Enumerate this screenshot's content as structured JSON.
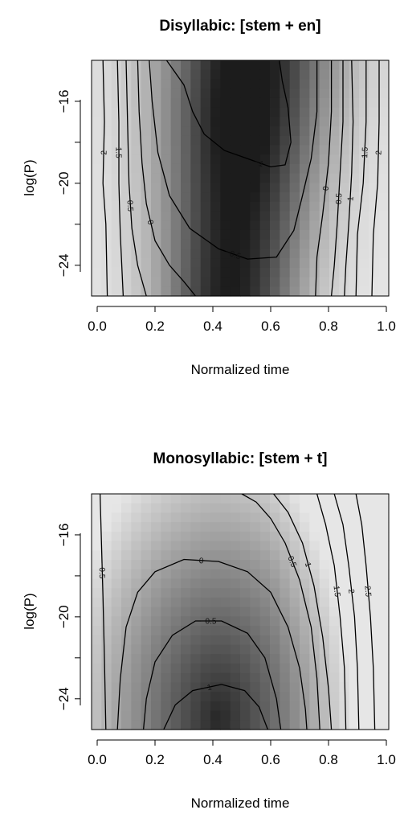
{
  "chart_data": [
    {
      "type": "heatmap",
      "title": "Disyllabic: [stem + en]",
      "xlabel": "Normalized time",
      "ylabel": "log(P)",
      "xlim": [
        0.0,
        1.0
      ],
      "ylim": [
        -25.5,
        -14
      ],
      "x_ticks": [
        "0.0",
        "0.2",
        "0.4",
        "0.6",
        "0.8",
        "1.0"
      ],
      "y_ticks": [
        "-16",
        "-20",
        "-24"
      ],
      "colormap": [
        "#e6e6e6",
        "#1c1c1c"
      ],
      "contours": [
        {
          "level": -1,
          "label": "-1",
          "points": [
            [
              0.24,
              -14
            ],
            [
              0.3,
              -15.2
            ],
            [
              0.33,
              -16.5
            ],
            [
              0.37,
              -17.6
            ],
            [
              0.44,
              -18.4
            ],
            [
              0.52,
              -18.8
            ],
            [
              0.6,
              -19.2
            ],
            [
              0.65,
              -19.1
            ],
            [
              0.67,
              -18.0
            ],
            [
              0.66,
              -16.3
            ],
            [
              0.64,
              -15.0
            ],
            [
              0.63,
              -14
            ]
          ]
        },
        {
          "level": -0.5,
          "label": "-0.5",
          "points": [
            [
              0.18,
              -14
            ],
            [
              0.19,
              -16.0
            ],
            [
              0.21,
              -18.5
            ],
            [
              0.25,
              -20.6
            ],
            [
              0.32,
              -22.2
            ],
            [
              0.42,
              -23.2
            ],
            [
              0.52,
              -23.7
            ],
            [
              0.62,
              -23.6
            ],
            [
              0.68,
              -22.3
            ],
            [
              0.71,
              -20.6
            ],
            [
              0.74,
              -18.8
            ],
            [
              0.76,
              -16.5
            ],
            [
              0.76,
              -14
            ]
          ]
        },
        {
          "level": 0,
          "label": "0",
          "points": [
            [
              0.14,
              -14
            ],
            [
              0.145,
              -16.5
            ],
            [
              0.155,
              -19.0
            ],
            [
              0.17,
              -21.0
            ],
            [
              0.2,
              -22.8
            ],
            [
              0.25,
              -24.0
            ],
            [
              0.3,
              -24.8
            ],
            [
              0.34,
              -25.5
            ]
          ]
        },
        {
          "level": 0,
          "label": "0",
          "points": [
            [
              0.81,
              -14
            ],
            [
              0.81,
              -16.5
            ],
            [
              0.8,
              -19.0
            ],
            [
              0.78,
              -21.5
            ],
            [
              0.76,
              -23.6
            ],
            [
              0.755,
              -25.5
            ]
          ]
        },
        {
          "level": 0.5,
          "label": "0.5",
          "points": [
            [
              0.1,
              -14
            ],
            [
              0.105,
              -17.0
            ],
            [
              0.11,
              -20.0
            ],
            [
              0.12,
              -22.2
            ],
            [
              0.14,
              -24.0
            ],
            [
              0.17,
              -25.5
            ]
          ]
        },
        {
          "level": 0.5,
          "label": "0.5",
          "points": [
            [
              0.85,
              -14
            ],
            [
              0.85,
              -17.0
            ],
            [
              0.84,
              -19.5
            ],
            [
              0.83,
              -22.0
            ],
            [
              0.82,
              -24.0
            ],
            [
              0.81,
              -25.5
            ]
          ]
        },
        {
          "level": 1,
          "label": "1",
          "points": [
            [
              0.88,
              -14
            ],
            [
              0.885,
              -17.0
            ],
            [
              0.88,
              -19.5
            ],
            [
              0.87,
              -22.0
            ],
            [
              0.86,
              -24.0
            ],
            [
              0.855,
              -25.5
            ]
          ]
        },
        {
          "level": 1.5,
          "label": "1.5",
          "points": [
            [
              0.07,
              -14
            ],
            [
              0.075,
              -17.0
            ],
            [
              0.075,
              -20.0
            ],
            [
              0.08,
              -22.5
            ],
            [
              0.09,
              -25.5
            ]
          ]
        },
        {
          "level": 1.5,
          "label": "1.5",
          "points": [
            [
              0.93,
              -14
            ],
            [
              0.93,
              -17.0
            ],
            [
              0.92,
              -20.0
            ],
            [
              0.9,
              -22.5
            ],
            [
              0.895,
              -25.5
            ]
          ]
        },
        {
          "level": 2,
          "label": "2",
          "points": [
            [
              0.02,
              -14
            ],
            [
              0.025,
              -17.0
            ],
            [
              0.02,
              -20.0
            ],
            [
              0.03,
              -22.0
            ],
            [
              0.035,
              -25.5
            ]
          ]
        },
        {
          "level": 2,
          "label": "2",
          "points": [
            [
              0.975,
              -14
            ],
            [
              0.975,
              -17.0
            ],
            [
              0.97,
              -20.0
            ],
            [
              0.955,
              -22.5
            ],
            [
              0.95,
              -25.5
            ]
          ]
        }
      ]
    },
    {
      "type": "heatmap",
      "title": "Monosyllabic: [stem + t]",
      "xlabel": "Normalized time",
      "ylabel": "log(P)",
      "xlim": [
        0.0,
        1.0
      ],
      "ylim": [
        -25.5,
        -14
      ],
      "x_ticks": [
        "0.0",
        "0.2",
        "0.4",
        "0.6",
        "0.8",
        "1.0"
      ],
      "y_ticks": [
        "-16",
        "-20",
        "-24"
      ],
      "colormap": [
        "#e6e6e6",
        "#1c1c1c"
      ],
      "contours": [
        {
          "level": -0.5,
          "label": "-0.5",
          "points": [
            [
              0.01,
              -14
            ],
            [
              0.015,
              -16.5
            ],
            [
              0.02,
              -19.0
            ],
            [
              0.025,
              -22.0
            ],
            [
              0.03,
              -25.5
            ]
          ]
        },
        {
          "level": 0,
          "label": "0",
          "points": [
            [
              0.07,
              -25.5
            ],
            [
              0.08,
              -23.0
            ],
            [
              0.1,
              -20.5
            ],
            [
              0.14,
              -18.8
            ],
            [
              0.2,
              -17.8
            ],
            [
              0.3,
              -17.2
            ],
            [
              0.42,
              -17.3
            ],
            [
              0.52,
              -17.8
            ],
            [
              0.6,
              -18.8
            ],
            [
              0.66,
              -20.5
            ],
            [
              0.7,
              -22.5
            ],
            [
              0.72,
              -24.5
            ],
            [
              0.725,
              -25.5
            ]
          ]
        },
        {
          "level": -0.5,
          "label": "-0.5",
          "points": [
            [
              0.16,
              -25.5
            ],
            [
              0.17,
              -24.0
            ],
            [
              0.2,
              -22.2
            ],
            [
              0.26,
              -20.9
            ],
            [
              0.34,
              -20.2
            ],
            [
              0.43,
              -20.2
            ],
            [
              0.52,
              -20.8
            ],
            [
              0.58,
              -22.0
            ],
            [
              0.62,
              -24.0
            ],
            [
              0.635,
              -25.5
            ]
          ]
        },
        {
          "level": -1,
          "label": "-1",
          "points": [
            [
              0.23,
              -25.5
            ],
            [
              0.27,
              -24.3
            ],
            [
              0.33,
              -23.6
            ],
            [
              0.43,
              -23.3
            ],
            [
              0.51,
              -23.6
            ],
            [
              0.56,
              -24.4
            ],
            [
              0.59,
              -25.5
            ]
          ]
        },
        {
          "level": 0.5,
          "label": "0.5",
          "points": [
            [
              0.5,
              -14
            ],
            [
              0.55,
              -14.4
            ],
            [
              0.6,
              -15.2
            ],
            [
              0.65,
              -16.4
            ],
            [
              0.7,
              -18.2
            ],
            [
              0.74,
              -20.5
            ],
            [
              0.76,
              -23.0
            ],
            [
              0.77,
              -25.5
            ]
          ]
        },
        {
          "level": 1,
          "label": "1",
          "points": [
            [
              0.61,
              -14
            ],
            [
              0.66,
              -14.9
            ],
            [
              0.71,
              -16.4
            ],
            [
              0.75,
              -18.5
            ],
            [
              0.78,
              -21.0
            ],
            [
              0.8,
              -23.5
            ],
            [
              0.81,
              -25.5
            ]
          ]
        },
        {
          "level": 1.5,
          "label": "1.5",
          "points": [
            [
              0.76,
              -14
            ],
            [
              0.79,
              -15.5
            ],
            [
              0.82,
              -17.5
            ],
            [
              0.84,
              -20.0
            ],
            [
              0.855,
              -22.5
            ],
            [
              0.86,
              -25.5
            ]
          ]
        },
        {
          "level": 2,
          "label": "2",
          "points": [
            [
              0.82,
              -14
            ],
            [
              0.85,
              -15.5
            ],
            [
              0.87,
              -17.5
            ],
            [
              0.89,
              -20.0
            ],
            [
              0.9,
              -22.5
            ],
            [
              0.905,
              -25.5
            ]
          ]
        },
        {
          "level": 2.5,
          "label": "2.5",
          "points": [
            [
              0.895,
              -14
            ],
            [
              0.915,
              -15.5
            ],
            [
              0.93,
              -17.5
            ],
            [
              0.945,
              -20.0
            ],
            [
              0.955,
              -22.5
            ],
            [
              0.96,
              -25.5
            ]
          ]
        }
      ]
    }
  ]
}
